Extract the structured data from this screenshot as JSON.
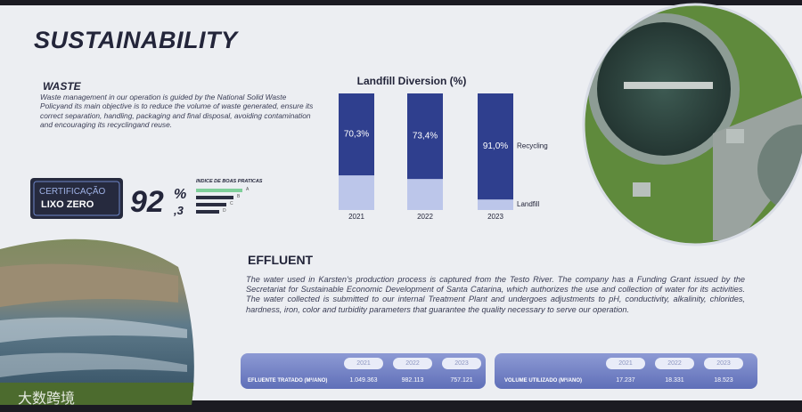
{
  "header": {
    "title": "SUSTAINABILITY"
  },
  "waste": {
    "heading": "WASTE",
    "text": "Waste management in our operation is guided by the National Solid Waste Policyand its main objective is to reduce the volume of waste generated, ensure its correct separation, handling, packaging and final disposal, avoiding contamination and encouraging its recyclingand reuse."
  },
  "certification": {
    "badge_top": "CERTIFICAÇÃO",
    "badge_bottom": "LIXO ZERO",
    "score": "92",
    "score_unit": "%",
    "score_decimal": ",3",
    "index_title": "INDICE DE BOAS PRATICAS",
    "grades": [
      "A",
      "B",
      "C",
      "D"
    ]
  },
  "chart_data": {
    "type": "bar",
    "stacked": true,
    "title": "Landfill Diversion (%)",
    "categories": [
      "2021",
      "2022",
      "2023"
    ],
    "series": [
      {
        "name": "Recycling",
        "color": "#2f3f8e",
        "values": [
          70.3,
          73.4,
          91.0
        ],
        "value_labels": [
          "70,3%",
          "73,4%",
          "91,0%"
        ]
      },
      {
        "name": "Landfill",
        "color": "#bcc6ea",
        "values": [
          29.7,
          26.6,
          9.0
        ]
      }
    ],
    "ylim": [
      0,
      100
    ]
  },
  "effluent": {
    "heading": "EFFLUENT",
    "text": "The water used in Karsten's production process is captured from the Testo River. The company has a Funding Grant issued by the Secretariat for Sustainable Economic Development of Santa Catarina, which authorizes the use and collection of water for its activities. The water collected is submitted to our internal Treatment Plant and undergoes adjustments to pH, conductivity, alkalinity, chlorides, hardness, iron, color and turbidity parameters that guarantee the quality necessary to serve our operation."
  },
  "tables": [
    {
      "label": "EFLUENTE TRATADO (M³/ANO)",
      "years": [
        "2021",
        "2022",
        "2023"
      ],
      "values": [
        "1.049.363",
        "982.113",
        "757.121"
      ]
    },
    {
      "label": "VOLUME UTILIZADO (M³/ANO)",
      "years": [
        "2021",
        "2022",
        "2023"
      ],
      "values": [
        "17.237",
        "18.331",
        "18.523"
      ]
    }
  ],
  "watermark": "大数跨境"
}
